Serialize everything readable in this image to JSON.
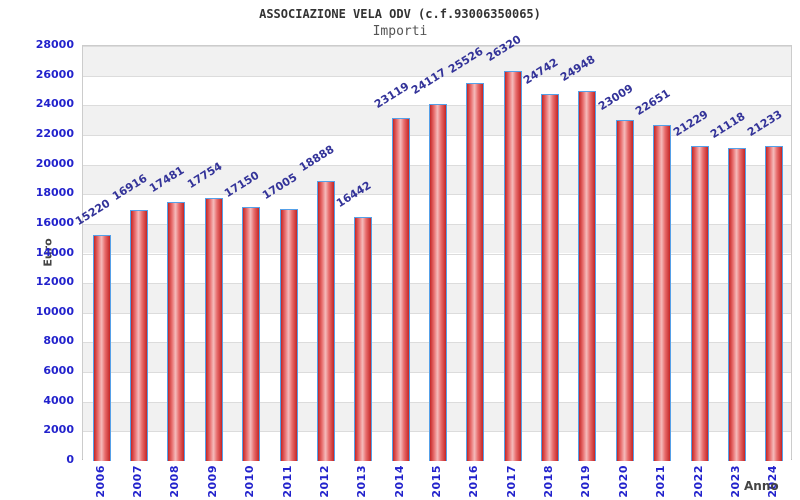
{
  "header": {
    "title": "ASSOCIAZIONE VELA ODV (c.f.93006350065)",
    "subtitle": "Importi"
  },
  "chart_data": {
    "type": "bar",
    "title": "ASSOCIAZIONE VELA ODV (c.f.93006350065)",
    "subtitle": "Importi",
    "xlabel": "Anno",
    "ylabel": "Euro",
    "categories": [
      "2006",
      "2007",
      "2008",
      "2009",
      "2010",
      "2011",
      "2012",
      "2013",
      "2014",
      "2015",
      "2016",
      "2017",
      "2018",
      "2019",
      "2020",
      "2021",
      "2022",
      "2023",
      "2024"
    ],
    "values": [
      15220,
      16916,
      17481,
      17754,
      17150,
      17005,
      18888,
      16442,
      23119,
      24117,
      25526,
      26320,
      24742,
      24948,
      23009,
      22651,
      21229,
      21118,
      21233
    ],
    "ylim": [
      0,
      28000
    ],
    "y_ticks": [
      0,
      2000,
      4000,
      6000,
      8000,
      10000,
      12000,
      14000,
      16000,
      18000,
      20000,
      22000,
      24000,
      26000,
      28000
    ],
    "grid": true,
    "legend": false,
    "data_labels": true,
    "colors": {
      "axis_tick_label": "#2222cc",
      "bar_value_label": "#333399",
      "bar_border": "#55a0e8",
      "bar_gradient": [
        "#c42626",
        "#e86e6e",
        "#f5bcbc",
        "#e86e6e",
        "#c42626"
      ],
      "band_gray": "#f1f1f1",
      "band_white": "#ffffff",
      "gridline": "#dcdcdc",
      "title_color": "#333333",
      "subtitle_color": "#555555",
      "axis_title_color": "#444444"
    }
  }
}
